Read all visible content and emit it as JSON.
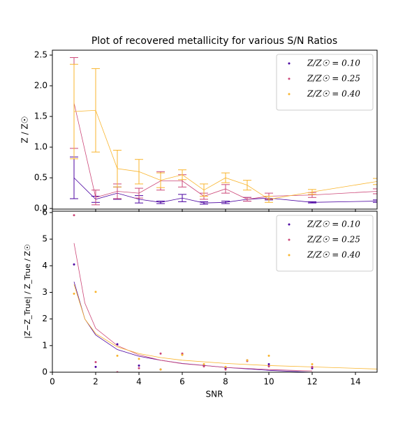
{
  "chart_data": [
    {
      "type": "line",
      "title": "Plot of recovered metallicity for various S/N Ratios",
      "ylabel": "Z / Z☉",
      "x": [
        1,
        2,
        3,
        4,
        5,
        6,
        7,
        8,
        9,
        10,
        12,
        15
      ],
      "xlim": [
        0,
        15
      ],
      "xticks": [
        0,
        2,
        4,
        6,
        8,
        10,
        12,
        14
      ],
      "ylim": [
        -0.01,
        2.58
      ],
      "yticks": [
        {
          "value": 0,
          "label": "0.0"
        },
        0.5,
        {
          "value": 1,
          "label": "1.0"
        },
        1.5,
        {
          "value": 2,
          "label": "2.0"
        },
        2.5
      ],
      "legend": "upper right",
      "series": [
        {
          "name": "Z/Z☉ = 0.10",
          "color": "#4b03a1",
          "values": [
            0.5,
            0.15,
            0.25,
            0.15,
            0.1,
            0.17,
            0.09,
            0.1,
            0.15,
            0.17,
            0.1,
            0.12
          ],
          "errors": [
            0.34,
            0.05,
            0.1,
            0.06,
            0.02,
            0.06,
            0.02,
            0.02,
            0.03,
            0.03,
            0.01,
            0.02
          ]
        },
        {
          "name": "Z/Z☉ = 0.25",
          "color": "#cc4778",
          "values": [
            1.72,
            0.18,
            0.28,
            0.25,
            0.45,
            0.45,
            0.2,
            0.32,
            0.15,
            0.2,
            0.22,
            0.28
          ],
          "errors": [
            0.74,
            0.12,
            0.12,
            0.08,
            0.15,
            0.1,
            0.05,
            0.07,
            0.03,
            0.05,
            0.04,
            0.04
          ]
        },
        {
          "name": "Z/Z☉ = 0.40",
          "color": "#f9b52d",
          "values": [
            1.58,
            1.6,
            0.65,
            0.6,
            0.46,
            0.55,
            0.3,
            0.5,
            0.38,
            0.15,
            0.27,
            0.44
          ],
          "errors": [
            0.77,
            0.68,
            0.3,
            0.2,
            0.12,
            0.08,
            0.1,
            0.08,
            0.08,
            0.05,
            0.04,
            0.05
          ]
        }
      ]
    },
    {
      "type": "scatter",
      "xlabel": "SNR",
      "ylabel": "|Z−Z_True| / Z_True  /  Z☉",
      "x": [
        1,
        2,
        3,
        4,
        5,
        6,
        7,
        8,
        9,
        10,
        12
      ],
      "xlim": [
        0,
        15
      ],
      "xticks": [
        0,
        2,
        4,
        6,
        8,
        10,
        12,
        14
      ],
      "ylim": [
        0,
        6.05
      ],
      "yticks": [
        0,
        1,
        2,
        3,
        4,
        5,
        6
      ],
      "legend": "upper right",
      "series": [
        {
          "name": "Z/Z☉ = 0.10",
          "color": "#4b03a1",
          "values": [
            4.05,
            0.2,
            1.05,
            0.25,
            0.1,
            0.68,
            0.25,
            0.15,
            0.45,
            0.3,
            0.15
          ]
        },
        {
          "name": "Z/Z☉ = 0.25",
          "color": "#cc4778",
          "values": [
            5.9,
            0.38,
            0.0,
            0.15,
            0.7,
            0.7,
            0.22,
            0.1,
            0.42,
            0.22,
            0.2
          ]
        },
        {
          "name": "Z/Z☉ = 0.40",
          "color": "#f9b52d",
          "values": [
            2.95,
            3.02,
            0.62,
            0.5,
            0.1,
            0.65,
            0.3,
            0.2,
            0.45,
            0.62,
            0.3
          ]
        }
      ],
      "fits": [
        {
          "color": "#4b03a1",
          "x": [
            1,
            1.5,
            2,
            3,
            4,
            5,
            6,
            8,
            10,
            12
          ],
          "values": [
            3.4,
            2.0,
            1.4,
            0.85,
            0.6,
            0.45,
            0.33,
            0.18,
            0.07,
            0.0
          ]
        },
        {
          "color": "#cc4778",
          "x": [
            1,
            1.5,
            2,
            3,
            4,
            5,
            6,
            8,
            10,
            12
          ],
          "values": [
            4.85,
            2.6,
            1.65,
            1.0,
            0.65,
            0.45,
            0.32,
            0.18,
            0.1,
            0.05
          ]
        },
        {
          "color": "#f9b52d",
          "x": [
            1,
            1.5,
            2,
            3,
            4,
            5,
            6,
            8,
            10,
            12,
            15
          ],
          "values": [
            3.3,
            2.0,
            1.45,
            0.95,
            0.7,
            0.55,
            0.45,
            0.33,
            0.25,
            0.2,
            0.12
          ]
        }
      ]
    }
  ]
}
